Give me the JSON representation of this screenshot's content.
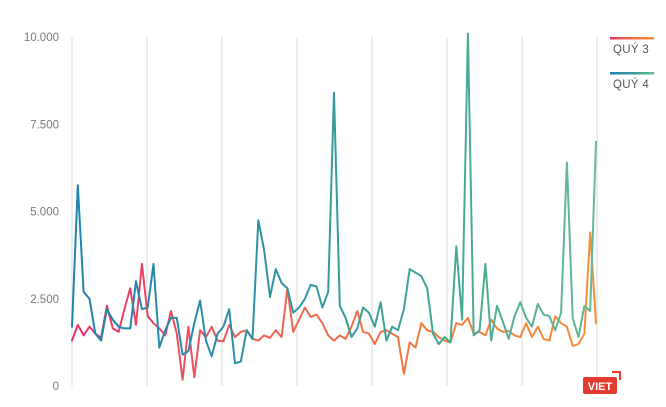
{
  "chart_data": {
    "type": "line",
    "title": "",
    "xlabel": "",
    "ylabel": "",
    "ylim": [
      0,
      10000
    ],
    "grid": {
      "horizontal": false,
      "vertical": true
    },
    "y_ticks": [
      {
        "value": 0,
        "label": "0"
      },
      {
        "value": 2500,
        "label": "2.500"
      },
      {
        "value": 5000,
        "label": "5.000"
      },
      {
        "value": 7500,
        "label": "7.500"
      },
      {
        "value": 10000,
        "label": "10.000"
      }
    ],
    "legend_position": "top-right",
    "series": [
      {
        "name": "QUÝ 3",
        "gradient": [
          "#e8336e",
          "#ed5f56",
          "#f07a3c",
          "#f2923a"
        ],
        "values": [
          1300,
          1750,
          1450,
          1700,
          1500,
          1380,
          2300,
          1650,
          1550,
          2200,
          2800,
          1750,
          3500,
          2000,
          1800,
          1650,
          1450,
          2150,
          1500,
          180,
          1700,
          250,
          1600,
          1400,
          1700,
          1300,
          1280,
          1750,
          1400,
          1550,
          1600,
          1350,
          1300,
          1450,
          1380,
          1600,
          1400,
          2800,
          1550,
          1900,
          2250,
          1980,
          2050,
          1800,
          1450,
          1300,
          1450,
          1350,
          1700,
          2150,
          1550,
          1500,
          1200,
          1550,
          1600,
          1500,
          1400,
          350,
          1250,
          1100,
          1800,
          1600,
          1550,
          1400,
          1300,
          1250,
          1800,
          1750,
          1950,
          1500,
          1550,
          1450,
          1900,
          1650,
          1550,
          1580,
          1450,
          1400,
          1800,
          1400,
          1700,
          1350,
          1300,
          2000,
          1800,
          1700,
          1150,
          1200,
          1500,
          4400,
          1800
        ]
      },
      {
        "name": "QUÝ 4",
        "gradient": [
          "#1f83b0",
          "#2e90a6",
          "#3ea595",
          "#68b995"
        ],
        "values": [
          1700,
          5750,
          2700,
          2500,
          1500,
          1300,
          2200,
          1900,
          1700,
          1650,
          1650,
          3000,
          2200,
          2250,
          3500,
          1100,
          1600,
          1950,
          1950,
          900,
          1000,
          1800,
          2450,
          1300,
          850,
          1500,
          1700,
          2200,
          650,
          700,
          1600,
          1350,
          4750,
          3900,
          2550,
          3350,
          2950,
          2800,
          2100,
          2250,
          2500,
          2900,
          2850,
          2250,
          2700,
          8400,
          2300,
          1950,
          1400,
          1650,
          2250,
          2100,
          1700,
          2400,
          1300,
          1700,
          1600,
          2200,
          3350,
          3250,
          3150,
          2800,
          1500,
          1200,
          1400,
          1250,
          4000,
          1900,
          10100,
          1450,
          1600,
          3500,
          1300,
          2300,
          1850,
          1350,
          2000,
          2400,
          1950,
          1700,
          2350,
          2050,
          2000,
          1600,
          2100,
          6400,
          1950,
          1400,
          2300,
          2150,
          7000
        ]
      }
    ]
  },
  "logo": {
    "text": "VIET"
  }
}
